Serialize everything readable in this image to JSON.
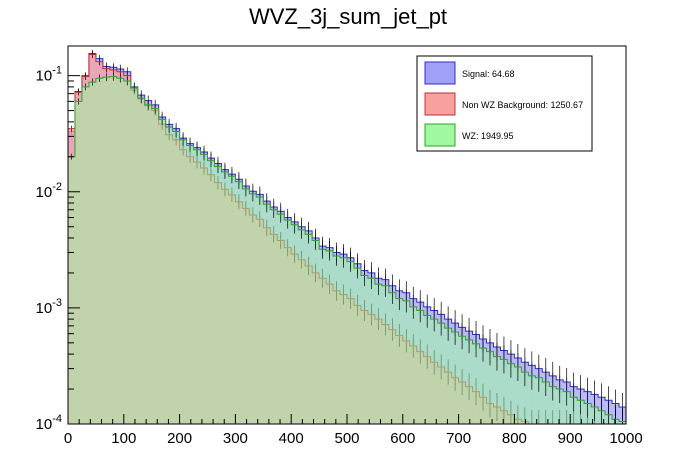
{
  "chart_data": {
    "type": "histogram",
    "title": "WVZ_3j_sum_jet_pt",
    "xlabel": "",
    "ylabel": "",
    "x_range": [
      0,
      1000
    ],
    "y_scale": "log",
    "y_range": [
      0.0001,
      0.18
    ],
    "x_ticks": [
      "0",
      "100",
      "200",
      "300",
      "400",
      "500",
      "600",
      "700",
      "800",
      "900",
      "1000"
    ],
    "y_tick_labels": [
      {
        "value": 0.1,
        "base": "10",
        "exp": "-1"
      },
      {
        "value": 0.01,
        "base": "10",
        "exp": "-2"
      },
      {
        "value": 0.001,
        "base": "10",
        "exp": "-3"
      },
      {
        "value": 0.0001,
        "base": "10",
        "exp": "-4"
      }
    ],
    "bin_width": 12.5,
    "legend_position": "top-right",
    "series": [
      {
        "name": "Signal: 64.68",
        "fill": "#a0a0f8",
        "line": "#3030c0",
        "values": [
          0.033,
          0.073,
          0.1,
          0.155,
          0.14,
          0.12,
          0.118,
          0.114,
          0.108,
          0.08,
          0.068,
          0.061,
          0.056,
          0.044,
          0.038,
          0.035,
          0.029,
          0.026,
          0.024,
          0.022,
          0.0195,
          0.0175,
          0.0155,
          0.0142,
          0.0128,
          0.0112,
          0.0101,
          0.0095,
          0.0083,
          0.0074,
          0.0068,
          0.006,
          0.0055,
          0.005,
          0.0046,
          0.004,
          0.0034,
          0.0033,
          0.003,
          0.0029,
          0.0027,
          0.0024,
          0.0021,
          0.002,
          0.0018,
          0.00175,
          0.00155,
          0.0014,
          0.00135,
          0.0012,
          0.00112,
          0.00102,
          0.00095,
          0.00088,
          0.0008,
          0.00074,
          0.00068,
          0.00063,
          0.00059,
          0.00054,
          0.0005,
          0.00046,
          0.00043,
          0.0004,
          0.00037,
          0.00034,
          0.00032,
          0.0003,
          0.00028,
          0.00026,
          0.00024,
          0.00023,
          0.00021,
          0.0002,
          0.00019,
          0.00018,
          0.00017,
          0.00016,
          0.00015,
          0.00014
        ]
      },
      {
        "name": "Non WZ Background: 1250.67",
        "fill": "#f8a0a0",
        "line": "#c03030",
        "values": [
          0.035,
          0.072,
          0.098,
          0.152,
          0.132,
          0.115,
          0.112,
          0.108,
          0.1,
          0.075,
          0.063,
          0.055,
          0.05,
          0.038,
          0.031,
          0.028,
          0.023,
          0.02,
          0.018,
          0.016,
          0.014,
          0.012,
          0.0105,
          0.0094,
          0.0082,
          0.0072,
          0.0063,
          0.0058,
          0.0049,
          0.0043,
          0.0038,
          0.0033,
          0.0029,
          0.0026,
          0.0023,
          0.002,
          0.0018,
          0.0016,
          0.0014,
          0.0013,
          0.0012,
          0.00105,
          0.00095,
          0.00088,
          0.0008,
          0.00072,
          0.00065,
          0.00058,
          0.00052,
          0.00047,
          0.00042,
          0.00038,
          0.00034,
          0.00031,
          0.00028,
          0.00025,
          0.00023,
          0.00021,
          0.00019,
          0.00017,
          0.00015,
          0.00014,
          0.00013,
          0.00012,
          0.00011,
          0.000105,
          0.0001,
          0.0001,
          0.0001,
          0.0001,
          0.0001,
          0.0001,
          0.0001,
          0.0001,
          0.0001,
          0.0001,
          0.0001,
          0.0001,
          0.0001,
          0.0001
        ]
      },
      {
        "name": "WZ: 1949.95",
        "fill": "#a0f8a0",
        "line": "#30a030",
        "values": [
          0.02,
          0.06,
          0.08,
          0.088,
          0.095,
          0.097,
          0.098,
          0.095,
          0.09,
          0.078,
          0.064,
          0.056,
          0.052,
          0.042,
          0.036,
          0.033,
          0.028,
          0.025,
          0.023,
          0.021,
          0.0185,
          0.0165,
          0.0148,
          0.0136,
          0.0122,
          0.0106,
          0.0096,
          0.009,
          0.0078,
          0.007,
          0.0064,
          0.0057,
          0.0052,
          0.0047,
          0.0043,
          0.0038,
          0.0032,
          0.0031,
          0.0028,
          0.0027,
          0.0025,
          0.0022,
          0.0019,
          0.0018,
          0.0016,
          0.00155,
          0.00135,
          0.0012,
          0.00115,
          0.00102,
          0.00095,
          0.00086,
          0.0008,
          0.00074,
          0.00067,
          0.00062,
          0.00057,
          0.00053,
          0.00049,
          0.00045,
          0.00042,
          0.00038,
          0.00036,
          0.00033,
          0.00031,
          0.00028,
          0.00026,
          0.00025,
          0.00023,
          0.00021,
          0.0002,
          0.00019,
          0.00017,
          0.00016,
          0.00015,
          0.00014,
          0.00013,
          0.00012,
          0.00011,
          0.000105
        ]
      }
    ]
  }
}
